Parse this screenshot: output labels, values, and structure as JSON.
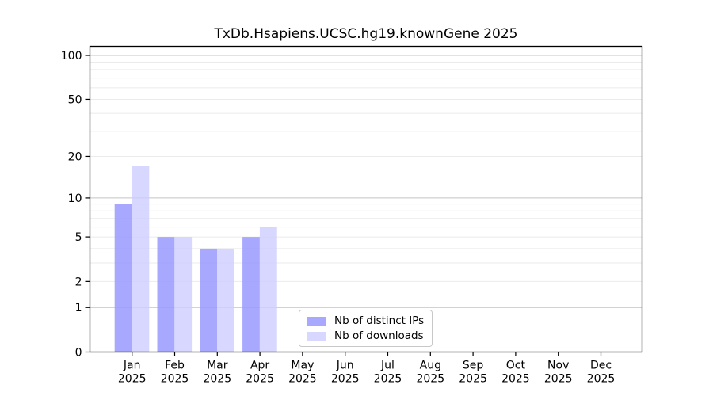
{
  "chart_data": {
    "type": "bar",
    "title": "TxDb.Hsapiens.UCSC.hg19.knownGene 2025",
    "categories": [
      {
        "month": "Jan",
        "year": "2025"
      },
      {
        "month": "Feb",
        "year": "2025"
      },
      {
        "month": "Mar",
        "year": "2025"
      },
      {
        "month": "Apr",
        "year": "2025"
      },
      {
        "month": "May",
        "year": "2025"
      },
      {
        "month": "Jun",
        "year": "2025"
      },
      {
        "month": "Jul",
        "year": "2025"
      },
      {
        "month": "Aug",
        "year": "2025"
      },
      {
        "month": "Sep",
        "year": "2025"
      },
      {
        "month": "Oct",
        "year": "2025"
      },
      {
        "month": "Nov",
        "year": "2025"
      },
      {
        "month": "Dec",
        "year": "2025"
      }
    ],
    "series": [
      {
        "name": "Nb of distinct IPs",
        "color": "#9999ff",
        "fill_opacity": 0.85,
        "values": [
          9,
          5,
          4,
          5,
          0,
          0,
          0,
          0,
          0,
          0,
          0,
          0
        ]
      },
      {
        "name": "Nb of downloads",
        "color": "#ccccff",
        "fill_opacity": 0.78,
        "values": [
          17,
          5,
          4,
          6,
          0,
          0,
          0,
          0,
          0,
          0,
          0,
          0
        ]
      }
    ],
    "y_scale": "log1p",
    "ylim": [
      0,
      100
    ],
    "yticks": [
      0,
      1,
      2,
      5,
      10,
      20,
      50,
      100
    ],
    "gridlines": {
      "minor": [
        2,
        3,
        4,
        5,
        6,
        7,
        8,
        9,
        20,
        30,
        40,
        50,
        60,
        70,
        80,
        90
      ],
      "major": [
        1,
        10,
        100
      ],
      "minor_color": "#ebebeb",
      "major_color": "#c4c4c4"
    },
    "legend_position": "bottom-center-inside",
    "axis_color": "#000000",
    "background_color": "#ffffff"
  }
}
